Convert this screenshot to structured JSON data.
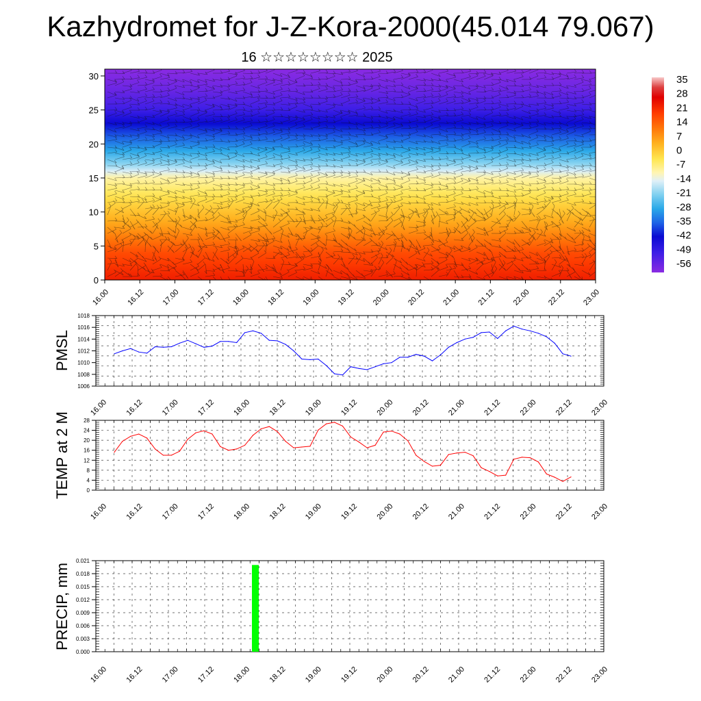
{
  "title": "Kazhydromet for J-Z-Kora-2000(45.014 79.067)",
  "subtitle": "16 ☆☆☆☆☆☆☆☆ 2025",
  "time_labels": [
    "16.00",
    "16.12",
    "17.00",
    "17.12",
    "18.00",
    "18.12",
    "19.00",
    "19.12",
    "20.00",
    "20.12",
    "21.00",
    "21.12",
    "22.00",
    "22.12",
    "23.00"
  ],
  "chart_data": [
    {
      "type": "heatmap",
      "title": "Kazhydromet for J-Z-Kora-2000(45.014 79.067)",
      "subtitle": "16 ☆☆☆☆☆☆☆☆ 2025",
      "y_ticks": [
        0,
        5,
        10,
        15,
        20,
        25,
        30
      ],
      "ylim": [
        0,
        31
      ],
      "colorbar": {
        "labels": [
          "35",
          "28",
          "21",
          "14",
          "7",
          "0",
          "-7",
          "-14",
          "-21",
          "-28",
          "-35",
          "-42",
          "-49",
          "-56"
        ],
        "range": [
          -60,
          38
        ],
        "stops": [
          {
            "v": -60,
            "c": "#8a2be2"
          },
          {
            "v": -50,
            "c": "#3c1ee6"
          },
          {
            "v": -42,
            "c": "#0a0ad2"
          },
          {
            "v": -35,
            "c": "#1e64e6"
          },
          {
            "v": -28,
            "c": "#2aa8e8"
          },
          {
            "v": -21,
            "c": "#7fd0f0"
          },
          {
            "v": -14,
            "c": "#e0f0f8"
          },
          {
            "v": -10,
            "c": "#fff5b4"
          },
          {
            "v": -3,
            "c": "#ffe650"
          },
          {
            "v": 5,
            "c": "#ffb01e"
          },
          {
            "v": 12,
            "c": "#ff7a0a"
          },
          {
            "v": 20,
            "c": "#ff3c00"
          },
          {
            "v": 28,
            "c": "#e00000"
          },
          {
            "v": 33,
            "c": "#dd4040"
          },
          {
            "v": 38,
            "c": "#f8c8c8"
          }
        ]
      },
      "contour_profile": [
        {
          "level": 0,
          "temp": 24
        },
        {
          "level": 4,
          "temp": 18
        },
        {
          "level": 8,
          "temp": 7
        },
        {
          "level": 12,
          "temp": -2
        },
        {
          "level": 15,
          "temp": -9
        },
        {
          "level": 17,
          "temp": -20
        },
        {
          "level": 20,
          "temp": -32
        },
        {
          "level": 23,
          "temp": -42
        },
        {
          "level": 25,
          "temp": -50
        },
        {
          "level": 28,
          "temp": -56
        },
        {
          "level": 31,
          "temp": -60
        }
      ]
    },
    {
      "type": "line",
      "ylabel": "PMSL",
      "ylim": [
        1006,
        1018
      ],
      "y_ticks": [
        1006,
        1008,
        1010,
        1012,
        1014,
        1016,
        1018
      ],
      "color": "#0000ff",
      "x_hours": [
        0,
        3,
        6,
        9,
        12,
        15,
        18,
        21,
        24,
        27,
        30,
        33,
        36,
        39,
        42,
        45,
        48,
        51,
        54,
        57,
        60,
        63,
        66,
        69,
        72,
        75,
        78,
        81,
        84,
        87,
        90,
        93,
        96,
        99,
        102,
        105,
        108,
        111,
        114,
        117,
        120,
        123,
        126,
        129,
        132,
        135,
        138,
        141,
        144,
        147,
        150,
        153,
        156,
        159,
        162,
        165,
        168
      ],
      "values": [
        1011.5,
        1012.0,
        1012.4,
        1011.8,
        1011.6,
        1012.7,
        1012.6,
        1012.7,
        1013.3,
        1013.8,
        1013.2,
        1012.6,
        1012.8,
        1013.6,
        1013.6,
        1013.4,
        1015.1,
        1015.4,
        1015.0,
        1013.8,
        1013.7,
        1013.1,
        1012.0,
        1010.6,
        1010.5,
        1010.6,
        1009.5,
        1008.1,
        1007.9,
        1009.3,
        1009.0,
        1008.8,
        1009.3,
        1009.8,
        1010.0,
        1010.9,
        1010.9,
        1011.4,
        1011.1,
        1010.3,
        1011.3,
        1012.6,
        1013.4,
        1014.0,
        1014.3,
        1015.1,
        1015.2,
        1014.1,
        1015.4,
        1016.2,
        1015.7,
        1015.4,
        1015.0,
        1014.4,
        1013.3,
        1011.5,
        1011.1
      ]
    },
    {
      "type": "line",
      "ylabel": "TEMP at 2 M",
      "ylim": [
        0,
        28
      ],
      "y_ticks": [
        0,
        4,
        8,
        12,
        16,
        20,
        24,
        28
      ],
      "color": "#ff0000",
      "x_hours": [
        0,
        3,
        6,
        9,
        12,
        15,
        18,
        21,
        24,
        27,
        30,
        33,
        36,
        39,
        42,
        45,
        48,
        51,
        54,
        57,
        60,
        63,
        66,
        69,
        72,
        75,
        78,
        81,
        84,
        87,
        90,
        93,
        96,
        99,
        102,
        105,
        108,
        111,
        114,
        117,
        120,
        123,
        126,
        129,
        132,
        135,
        138,
        141,
        144,
        147,
        150,
        153,
        156,
        159,
        162,
        165,
        168
      ],
      "values": [
        15.2,
        19.6,
        21.6,
        22.5,
        20.9,
        16.5,
        14.0,
        14.0,
        15.6,
        20.4,
        23.0,
        23.8,
        22.5,
        17.5,
        16.0,
        16.5,
        18.0,
        22.0,
        24.6,
        25.5,
        23.5,
        19.6,
        17.0,
        17.3,
        17.6,
        24.1,
        26.6,
        27.2,
        25.7,
        21.3,
        19.3,
        17.0,
        18.0,
        23.3,
        23.7,
        22.5,
        19.8,
        14.0,
        11.5,
        9.6,
        10.0,
        14.3,
        14.9,
        15.2,
        13.8,
        9.0,
        7.5,
        5.7,
        6.0,
        12.4,
        13.2,
        13.0,
        11.3,
        6.5,
        5.2,
        3.5,
        5.3
      ]
    },
    {
      "type": "bar",
      "ylabel": "PRECIP, mm",
      "ylim": [
        0,
        0.021
      ],
      "y_tick_labels": [
        "0.000",
        "0.003",
        "0.006",
        "0.009",
        "0.012",
        "0.015",
        "0.018",
        "0.021"
      ],
      "color": "#00ff00",
      "bars": [
        {
          "x_hour": 48,
          "value": 0.02
        }
      ]
    }
  ]
}
